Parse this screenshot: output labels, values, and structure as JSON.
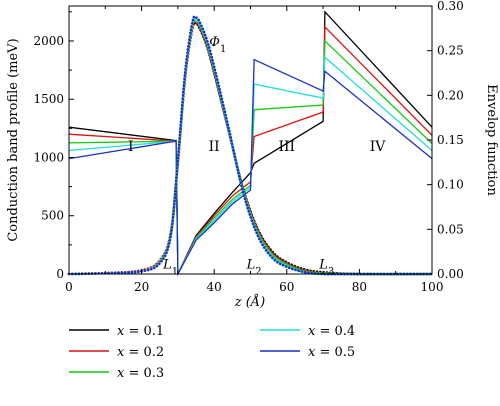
{
  "chart_data": {
    "type": "line",
    "xlabel": "z (Å)",
    "ylabel_left": "Conduction band profile (meV)",
    "ylabel_right": "Envelop function",
    "xlim": [
      0,
      100
    ],
    "ylim_left": [
      0,
      2300
    ],
    "ylim_right": [
      0,
      0.3
    ],
    "x_ticks": [
      0,
      20,
      40,
      60,
      80,
      100
    ],
    "y_left_ticks": [
      0,
      500,
      1000,
      1500,
      2000
    ],
    "y_right_ticks": [
      "0.00",
      "0.05",
      "0.10",
      "0.15",
      "0.20",
      "0.25",
      "0.30"
    ],
    "grid": false,
    "legend_position": "bottom, below plot, two columns",
    "region_labels": [
      {
        "text": "I",
        "x": 17,
        "y": 1100
      },
      {
        "text": "II",
        "x": 40,
        "y": 1100
      },
      {
        "text": "III",
        "x": 60,
        "y": 1100
      },
      {
        "text": "IV",
        "x": 85,
        "y": 1100
      }
    ],
    "annotations": [
      {
        "text": "Φ",
        "sub": "1",
        "x": 41,
        "y": 2000
      },
      {
        "text": "L",
        "sub": "1",
        "x": 28,
        "y": 90
      },
      {
        "text": "L",
        "sub": "2",
        "x": 51,
        "y": 90
      },
      {
        "text": "L",
        "sub": "3",
        "x": 71,
        "y": 90
      }
    ],
    "series": [
      {
        "name": "x = 0.1",
        "color": "#000000",
        "band_profile": [
          [
            0,
            1260
          ],
          [
            29.5,
            1145
          ],
          [
            30,
            0
          ],
          [
            35,
            330
          ],
          [
            40,
            520
          ],
          [
            45,
            700
          ],
          [
            50,
            870
          ],
          [
            51,
            950
          ],
          [
            70,
            1310
          ],
          [
            70.5,
            2250
          ],
          [
            100,
            1260
          ]
        ],
        "envelope": [
          [
            0,
            0.0
          ],
          [
            10,
            0.001
          ],
          [
            20,
            0.004
          ],
          [
            25,
            0.015
          ],
          [
            28,
            0.045
          ],
          [
            30,
            0.125
          ],
          [
            32,
            0.22
          ],
          [
            34,
            0.275
          ],
          [
            35,
            0.28
          ],
          [
            36,
            0.275
          ],
          [
            38,
            0.255
          ],
          [
            40,
            0.225
          ],
          [
            44,
            0.16
          ],
          [
            48,
            0.095
          ],
          [
            52,
            0.05
          ],
          [
            56,
            0.025
          ],
          [
            60,
            0.013
          ],
          [
            65,
            0.005
          ],
          [
            70,
            0.002
          ],
          [
            80,
            0.0
          ],
          [
            100,
            0.0
          ]
        ]
      },
      {
        "name": "x = 0.2",
        "color": "#dd1111",
        "band_profile": [
          [
            0,
            1200
          ],
          [
            29.5,
            1140
          ],
          [
            30,
            0
          ],
          [
            35,
            320
          ],
          [
            40,
            500
          ],
          [
            45,
            670
          ],
          [
            50,
            790
          ],
          [
            51,
            1180
          ],
          [
            70,
            1390
          ],
          [
            70.5,
            2120
          ],
          [
            100,
            1190
          ]
        ],
        "envelope": [
          [
            0,
            0.0
          ],
          [
            10,
            0.001
          ],
          [
            20,
            0.004
          ],
          [
            25,
            0.015
          ],
          [
            28,
            0.045
          ],
          [
            30,
            0.125
          ],
          [
            32,
            0.22
          ],
          [
            34,
            0.276
          ],
          [
            35,
            0.281
          ],
          [
            36,
            0.276
          ],
          [
            38,
            0.256
          ],
          [
            40,
            0.226
          ],
          [
            44,
            0.16
          ],
          [
            48,
            0.094
          ],
          [
            52,
            0.049
          ],
          [
            56,
            0.024
          ],
          [
            60,
            0.012
          ],
          [
            65,
            0.004
          ],
          [
            70,
            0.001
          ],
          [
            80,
            0.0
          ],
          [
            100,
            0.0
          ]
        ]
      },
      {
        "name": "x = 0.3",
        "color": "#11cc11",
        "band_profile": [
          [
            0,
            1125
          ],
          [
            29.5,
            1140
          ],
          [
            30,
            0
          ],
          [
            35,
            310
          ],
          [
            40,
            480
          ],
          [
            45,
            640
          ],
          [
            50,
            760
          ],
          [
            51,
            1410
          ],
          [
            70,
            1450
          ],
          [
            70.5,
            2000
          ],
          [
            100,
            1120
          ]
        ],
        "envelope": [
          [
            0,
            0.0
          ],
          [
            10,
            0.001
          ],
          [
            20,
            0.003
          ],
          [
            25,
            0.014
          ],
          [
            28,
            0.044
          ],
          [
            30,
            0.126
          ],
          [
            32,
            0.222
          ],
          [
            34,
            0.278
          ],
          [
            35,
            0.283
          ],
          [
            36,
            0.278
          ],
          [
            38,
            0.258
          ],
          [
            40,
            0.228
          ],
          [
            44,
            0.161
          ],
          [
            48,
            0.093
          ],
          [
            52,
            0.047
          ],
          [
            56,
            0.022
          ],
          [
            60,
            0.011
          ],
          [
            65,
            0.003
          ],
          [
            70,
            0.001
          ],
          [
            80,
            0.0
          ],
          [
            100,
            0.0
          ]
        ]
      },
      {
        "name": "x = 0.4",
        "color": "#22dddd",
        "band_profile": [
          [
            0,
            1060
          ],
          [
            29.5,
            1140
          ],
          [
            30,
            0
          ],
          [
            35,
            300
          ],
          [
            40,
            460
          ],
          [
            45,
            620
          ],
          [
            50,
            740
          ],
          [
            51,
            1630
          ],
          [
            70,
            1510
          ],
          [
            70.5,
            1860
          ],
          [
            100,
            1060
          ]
        ],
        "envelope": [
          [
            0,
            0.0
          ],
          [
            10,
            0.001
          ],
          [
            20,
            0.003
          ],
          [
            25,
            0.013
          ],
          [
            28,
            0.043
          ],
          [
            30,
            0.127
          ],
          [
            32,
            0.224
          ],
          [
            34,
            0.28
          ],
          [
            35,
            0.285
          ],
          [
            36,
            0.28
          ],
          [
            38,
            0.26
          ],
          [
            40,
            0.23
          ],
          [
            44,
            0.162
          ],
          [
            48,
            0.092
          ],
          [
            52,
            0.045
          ],
          [
            56,
            0.02
          ],
          [
            60,
            0.009
          ],
          [
            65,
            0.002
          ],
          [
            70,
            0.0
          ],
          [
            80,
            0.0
          ],
          [
            100,
            0.0
          ]
        ]
      },
      {
        "name": "x = 0.5",
        "color": "#1a2ecc",
        "band_profile": [
          [
            0,
            990
          ],
          [
            29.5,
            1140
          ],
          [
            30,
            0
          ],
          [
            35,
            290
          ],
          [
            40,
            440
          ],
          [
            45,
            600
          ],
          [
            50,
            720
          ],
          [
            51,
            1840
          ],
          [
            70,
            1570
          ],
          [
            70.5,
            1740
          ],
          [
            100,
            990
          ]
        ],
        "envelope": [
          [
            0,
            0.0
          ],
          [
            10,
            0.001
          ],
          [
            20,
            0.003
          ],
          [
            25,
            0.012
          ],
          [
            28,
            0.042
          ],
          [
            30,
            0.128
          ],
          [
            32,
            0.226
          ],
          [
            34,
            0.282
          ],
          [
            35,
            0.287
          ],
          [
            36,
            0.282
          ],
          [
            38,
            0.262
          ],
          [
            40,
            0.232
          ],
          [
            44,
            0.163
          ],
          [
            48,
            0.091
          ],
          [
            52,
            0.043
          ],
          [
            56,
            0.018
          ],
          [
            60,
            0.008
          ],
          [
            65,
            0.002
          ],
          [
            70,
            0.0
          ],
          [
            80,
            0.0
          ],
          [
            100,
            0.0
          ]
        ]
      }
    ]
  }
}
